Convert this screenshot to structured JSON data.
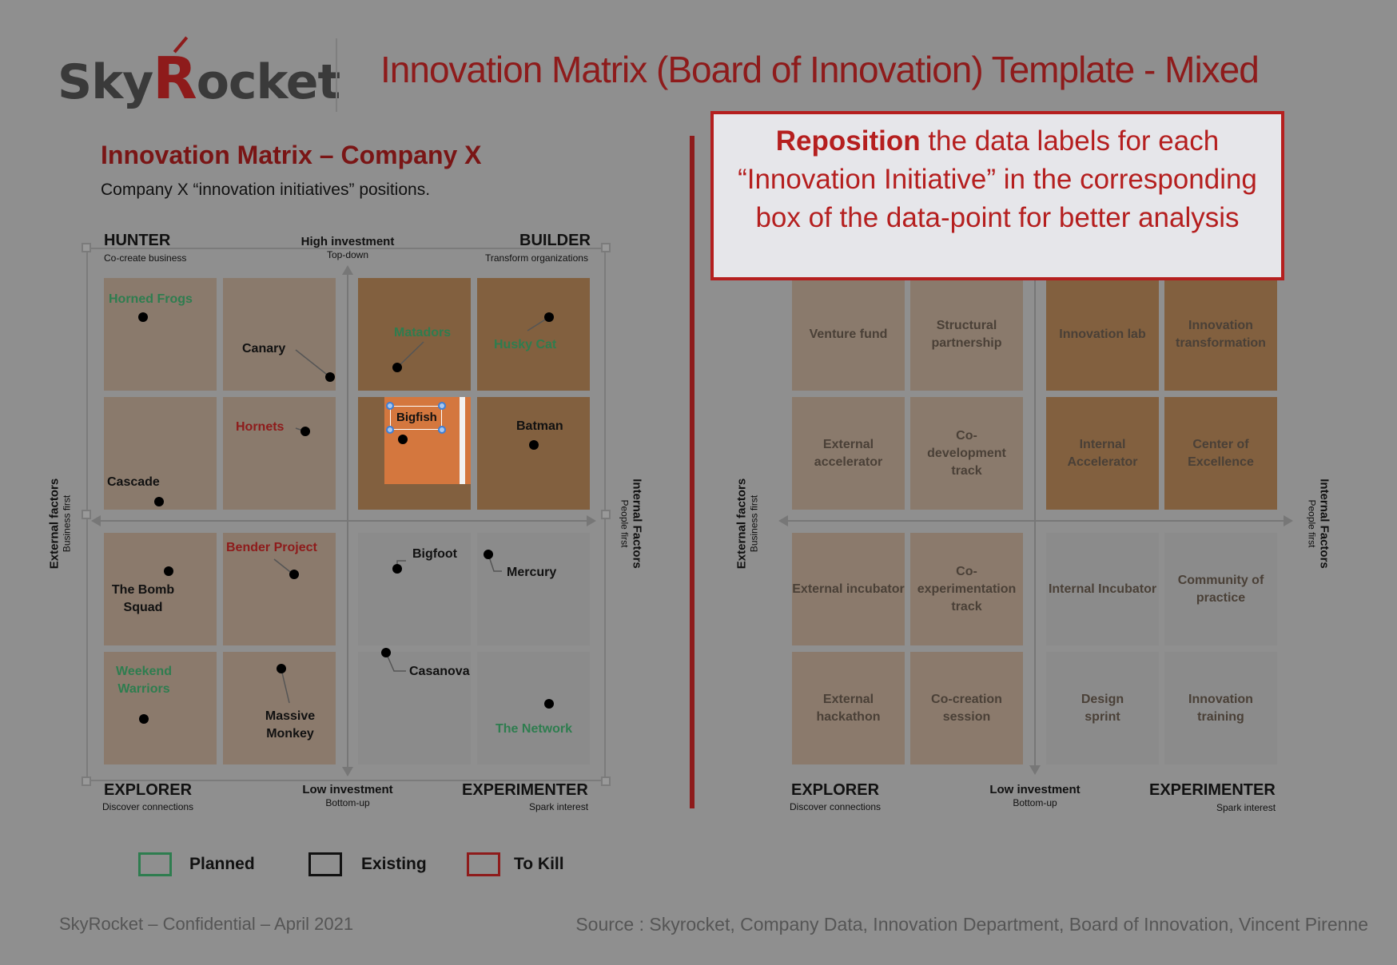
{
  "header": {
    "logo_pre": "Sky",
    "logo_r": "R",
    "logo_post": "ocket",
    "title": "Innovation Matrix (Board of Innovation) Template - Mixed"
  },
  "left": {
    "title": "Innovation Matrix – Company X",
    "subtitle": "Company X “innovation initiatives” positions.",
    "hunter": "HUNTER",
    "hunter_sub": "Co-create business",
    "builder": "BUILDER",
    "builder_sub": "Transform organizations",
    "explorer": "EXPLORER",
    "explorer_sub": "Discover connections",
    "experimenter": "EXPERIMENTER",
    "experimenter_sub": "Spark interest",
    "high_inv": "High investment",
    "high_inv_sub": "Top-down",
    "low_inv": "Low investment",
    "low_inv_sub": "Bottom-up",
    "ext": "External factors",
    "ext_sub": "Business first",
    "int": "Internal Factors",
    "int_sub": "People first",
    "points": {
      "horned_frogs": "Horned Frogs",
      "canary": "Canary",
      "matadors": "Matadors",
      "husky_cat": "Husky Cat",
      "hornets": "Hornets",
      "bigfish": "Bigfish",
      "batman": "Batman",
      "cascade": "Cascade",
      "bender": "Bender Project",
      "bomb_squad": "The Bomb Squad",
      "bigfoot": "Bigfoot",
      "mercury": "Mercury",
      "casanova": "Casanova",
      "weekend": "Weekend Warriors",
      "massive": "Massive Monkey",
      "network": "The Network"
    }
  },
  "callout": {
    "bold": "Reposition",
    "rest": " the data labels for each “Innovation Initiative” in the corresponding box of the data-point for better analysis"
  },
  "right": {
    "cells": [
      "Venture fund",
      "Structural partnership",
      "Innovation lab",
      "Innovation transformation",
      "External accelerator",
      "Co-development track",
      "Internal Accelerator",
      "Center of Excellence",
      "External incubator",
      "Co-experimentation track",
      "Internal Incubator",
      "Community of practice",
      "External hackathon",
      "Co-creation session",
      "Design sprint",
      "Innovation training"
    ],
    "explorer": "EXPLORER",
    "explorer_sub": "Discover connections",
    "experimenter": "EXPERIMENTER",
    "experimenter_sub": "Spark interest",
    "low_inv": "Low investment",
    "low_inv_sub": "Bottom-up",
    "ext": "External factors",
    "ext_sub": "Business first",
    "int": "Internal Factors",
    "int_sub": "People first"
  },
  "legend": {
    "planned": "Planned",
    "existing": "Existing",
    "to_kill": "To Kill",
    "planned_color": "#2e7d4f",
    "existing_color": "#111111",
    "kill_color": "#8e1b1b"
  },
  "footer": {
    "left": "SkyRocket – Confidential – April 2021",
    "right": "Source : Skyrocket, Company Data, Innovation Department, Board of Innovation, Vincent Pirenne"
  }
}
